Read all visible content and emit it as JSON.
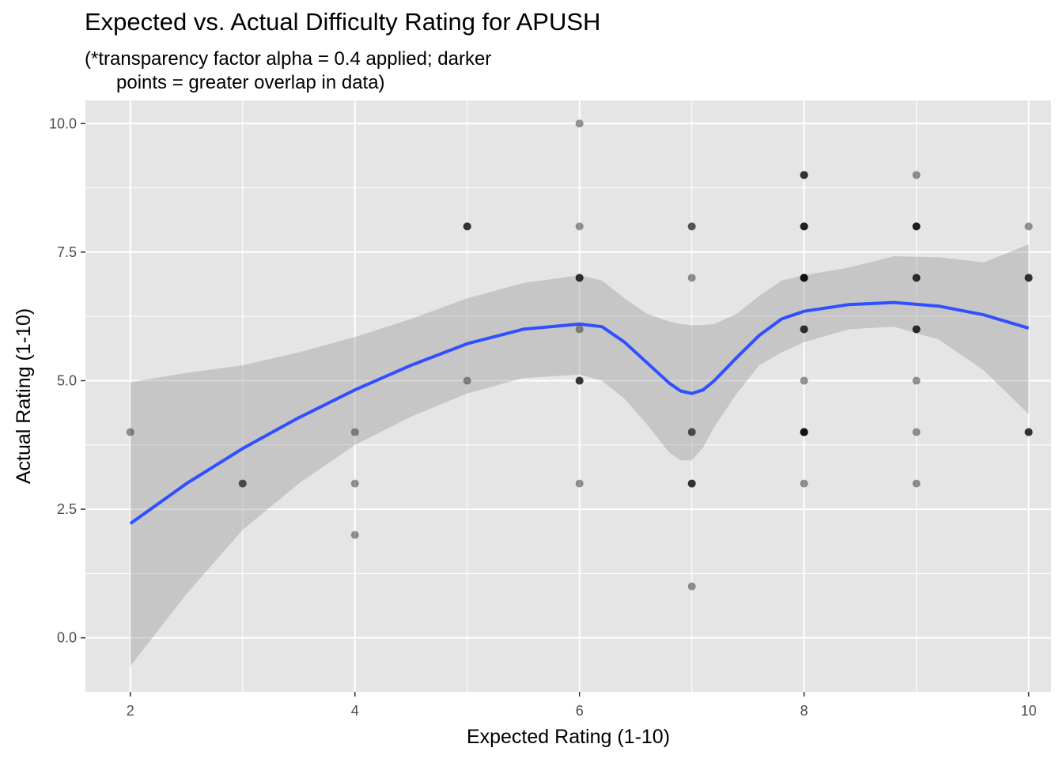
{
  "chart_data": {
    "type": "scatter",
    "title": "Expected vs. Actual Difficulty Rating for APUSH",
    "subtitle": "(*transparency factor alpha = 0.4 applied; darker\n      points = greater overlap in data)",
    "xlabel": "Expected Rating (1-10)",
    "ylabel": "Actual Rating (1-10)",
    "xlim": [
      1.6,
      10.2
    ],
    "ylim": [
      -1.05,
      10.45
    ],
    "x_ticks": [
      2,
      4,
      6,
      8,
      10
    ],
    "x_tick_labels": [
      "2",
      "4",
      "6",
      "8",
      "10"
    ],
    "y_ticks": [
      0,
      2.5,
      5,
      7.5,
      10
    ],
    "y_tick_labels": [
      "0.0",
      "2.5",
      "5.0",
      "7.5",
      "10.0"
    ],
    "grid": true,
    "background_color": "#e5e5e5",
    "grid_color": "#ffffff",
    "point_color": "#000000",
    "point_alpha": 0.4,
    "smooth_color": "#3050ff",
    "ribbon_color": "#999999",
    "ribbon_alpha": 0.4,
    "points": [
      {
        "x": 2,
        "y": 4,
        "n": 1
      },
      {
        "x": 3,
        "y": 3,
        "n": 2
      },
      {
        "x": 4,
        "y": 4,
        "n": 1
      },
      {
        "x": 4,
        "y": 3,
        "n": 1
      },
      {
        "x": 4,
        "y": 2,
        "n": 1
      },
      {
        "x": 5,
        "y": 8,
        "n": 3
      },
      {
        "x": 5,
        "y": 5,
        "n": 1
      },
      {
        "x": 6,
        "y": 10,
        "n": 1
      },
      {
        "x": 6,
        "y": 8,
        "n": 1
      },
      {
        "x": 6,
        "y": 7,
        "n": 3
      },
      {
        "x": 6,
        "y": 6,
        "n": 1
      },
      {
        "x": 6,
        "y": 5,
        "n": 3
      },
      {
        "x": 6,
        "y": 3,
        "n": 1
      },
      {
        "x": 7,
        "y": 8,
        "n": 2
      },
      {
        "x": 7,
        "y": 7,
        "n": 1
      },
      {
        "x": 7,
        "y": 4,
        "n": 2
      },
      {
        "x": 7,
        "y": 3,
        "n": 3
      },
      {
        "x": 7,
        "y": 1,
        "n": 1
      },
      {
        "x": 8,
        "y": 9,
        "n": 3
      },
      {
        "x": 8,
        "y": 8,
        "n": 4
      },
      {
        "x": 8,
        "y": 7,
        "n": 5
      },
      {
        "x": 8,
        "y": 6,
        "n": 3
      },
      {
        "x": 8,
        "y": 5,
        "n": 1
      },
      {
        "x": 8,
        "y": 4,
        "n": 5
      },
      {
        "x": 8,
        "y": 3,
        "n": 1
      },
      {
        "x": 9,
        "y": 9,
        "n": 1
      },
      {
        "x": 9,
        "y": 8,
        "n": 4
      },
      {
        "x": 9,
        "y": 7,
        "n": 3
      },
      {
        "x": 9,
        "y": 6,
        "n": 3
      },
      {
        "x": 9,
        "y": 5,
        "n": 1
      },
      {
        "x": 9,
        "y": 4,
        "n": 1
      },
      {
        "x": 9,
        "y": 3,
        "n": 1
      },
      {
        "x": 10,
        "y": 8,
        "n": 1
      },
      {
        "x": 10,
        "y": 7,
        "n": 3
      },
      {
        "x": 10,
        "y": 4,
        "n": 3
      }
    ],
    "smooth": {
      "x": [
        2,
        2.5,
        3,
        3.5,
        4,
        4.5,
        5,
        5.5,
        6,
        6.2,
        6.4,
        6.6,
        6.8,
        6.9,
        7.0,
        7.1,
        7.2,
        7.4,
        7.6,
        7.8,
        8.0,
        8.4,
        8.8,
        9.2,
        9.6,
        10
      ],
      "y": [
        2.22,
        3.0,
        3.68,
        4.28,
        4.82,
        5.3,
        5.72,
        6.0,
        6.1,
        6.05,
        5.75,
        5.35,
        4.95,
        4.8,
        4.75,
        4.82,
        5.0,
        5.45,
        5.88,
        6.2,
        6.35,
        6.48,
        6.52,
        6.45,
        6.28,
        6.02
      ],
      "ymin": [
        -0.55,
        0.85,
        2.1,
        3.0,
        3.75,
        4.3,
        4.75,
        5.05,
        5.12,
        5.0,
        4.65,
        4.15,
        3.6,
        3.45,
        3.45,
        3.7,
        4.1,
        4.75,
        5.3,
        5.55,
        5.75,
        6.0,
        6.05,
        5.8,
        5.2,
        4.35
      ],
      "ymax": [
        4.97,
        5.15,
        5.3,
        5.55,
        5.85,
        6.2,
        6.6,
        6.9,
        7.05,
        6.95,
        6.6,
        6.3,
        6.15,
        6.1,
        6.08,
        6.08,
        6.1,
        6.3,
        6.65,
        6.95,
        7.05,
        7.2,
        7.42,
        7.4,
        7.3,
        7.65
      ]
    }
  }
}
